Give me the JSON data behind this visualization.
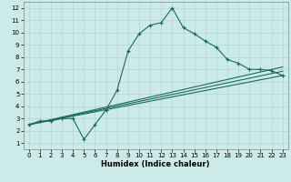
{
  "title": "",
  "xlabel": "Humidex (Indice chaleur)",
  "xlim": [
    -0.5,
    23.5
  ],
  "ylim": [
    0.5,
    12.5
  ],
  "xticks": [
    0,
    1,
    2,
    3,
    4,
    5,
    6,
    7,
    8,
    9,
    10,
    11,
    12,
    13,
    14,
    15,
    16,
    17,
    18,
    19,
    20,
    21,
    22,
    23
  ],
  "yticks": [
    1,
    2,
    3,
    4,
    5,
    6,
    7,
    8,
    9,
    10,
    11,
    12
  ],
  "bg_color": "#cceae7",
  "line_color": "#1a6b5a",
  "grid_color": "#b0d8d4",
  "curve_x": [
    0,
    1,
    2,
    3,
    4,
    5,
    6,
    7,
    8,
    9,
    10,
    11,
    12,
    13,
    14,
    15,
    16,
    17,
    18,
    19,
    20,
    21,
    22,
    23
  ],
  "curve_y": [
    2.5,
    2.8,
    2.8,
    3.0,
    3.0,
    1.3,
    2.5,
    3.7,
    5.3,
    8.5,
    9.9,
    10.6,
    10.8,
    12.0,
    10.4,
    9.9,
    9.3,
    8.8,
    7.8,
    7.5,
    7.0,
    7.0,
    6.9,
    6.5
  ],
  "line1_y_start": 2.5,
  "line1_y_end": 7.2,
  "line2_y_start": 2.5,
  "line2_y_end": 6.5,
  "line3_y_start": 2.5,
  "line3_y_end": 6.85,
  "line_x_start": 0,
  "line_x_end": 23,
  "tick_fontsize": 5,
  "xlabel_fontsize": 6,
  "marker": "+",
  "markersize": 3,
  "linewidth": 0.8
}
